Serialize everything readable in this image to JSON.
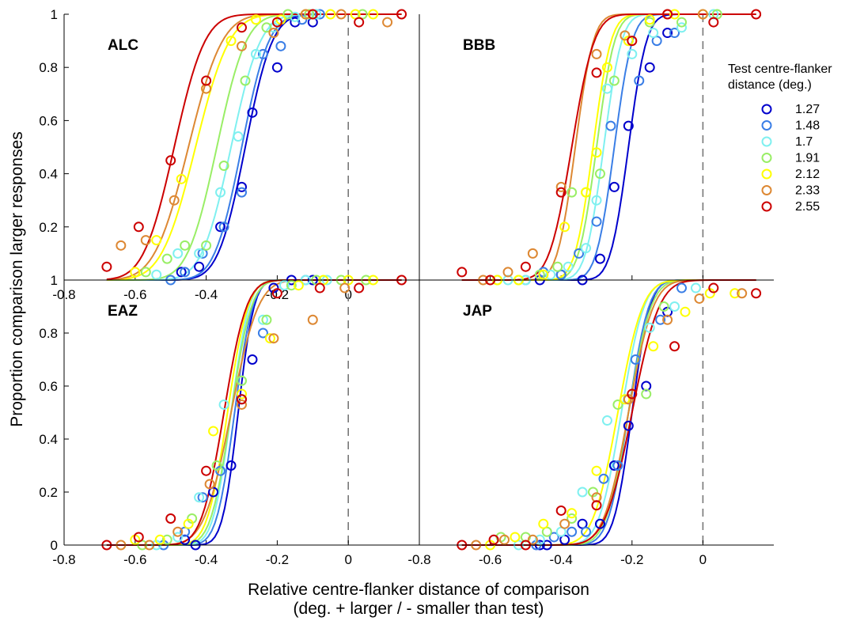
{
  "figure": {
    "ylabel": "Proportion comparison larger responses",
    "xlabel_line1": "Relative centre-flanker distance of comparison",
    "xlabel_line2": "(deg. + larger / - smaller than test)"
  },
  "legend": {
    "title_line1": "Test centre-flanker",
    "title_line2": "distance (deg.)",
    "placement": "right"
  },
  "chart_data": [
    {
      "type": "scatter",
      "title": "ALC",
      "xlim": [
        -0.8,
        0.2
      ],
      "ylim": [
        0,
        1
      ],
      "xticks": [
        "-0.8",
        "-0.6",
        "-0.4",
        "-0.2",
        "0"
      ],
      "yticks": [
        "0.2",
        "0.4",
        "0.6",
        "0.8",
        "1"
      ],
      "reference_line_x": 0,
      "series": [
        {
          "name": "1.27",
          "color": "#0000cc",
          "fit": {
            "mu": -0.29,
            "s": 0.06
          },
          "x": [
            -0.47,
            -0.42,
            -0.36,
            -0.3,
            -0.27,
            -0.2,
            -0.15,
            -0.1
          ],
          "y": [
            0.03,
            0.05,
            0.2,
            0.35,
            0.63,
            0.8,
            0.97,
            0.97
          ]
        },
        {
          "name": "1.48",
          "color": "#3a7ee6",
          "fit": {
            "mu": -0.3,
            "s": 0.06
          },
          "x": [
            -0.5,
            -0.46,
            -0.41,
            -0.35,
            -0.3,
            -0.24,
            -0.19,
            -0.13,
            -0.08
          ],
          "y": [
            0.0,
            0.03,
            0.1,
            0.2,
            0.33,
            0.85,
            0.88,
            0.98,
            1.0
          ]
        },
        {
          "name": "1.7",
          "color": "#7ff0f0",
          "fit": {
            "mu": -0.33,
            "s": 0.065
          },
          "x": [
            -0.54,
            -0.48,
            -0.42,
            -0.36,
            -0.31,
            -0.26,
            -0.21,
            -0.15,
            -0.09
          ],
          "y": [
            0.02,
            0.1,
            0.1,
            0.33,
            0.54,
            0.85,
            0.95,
            0.99,
            1.0
          ]
        },
        {
          "name": "1.91",
          "color": "#99ee66",
          "fit": {
            "mu": -0.37,
            "s": 0.065
          },
          "x": [
            -0.57,
            -0.51,
            -0.46,
            -0.4,
            -0.35,
            -0.29,
            -0.23,
            -0.17,
            -0.11,
            0.04
          ],
          "y": [
            0.03,
            0.08,
            0.13,
            0.13,
            0.43,
            0.75,
            0.95,
            1.0,
            1.0,
            1.0
          ]
        },
        {
          "name": "2.12",
          "color": "#ffff00",
          "fit": {
            "mu": -0.43,
            "s": 0.075
          },
          "x": [
            -0.6,
            -0.54,
            -0.47,
            -0.4,
            -0.33,
            -0.26,
            -0.19,
            -0.12,
            -0.05,
            0.02,
            0.07
          ],
          "y": [
            0.03,
            0.15,
            0.38,
            0.72,
            0.9,
            0.98,
            0.98,
            1.0,
            1.0,
            1.0,
            1.0
          ]
        },
        {
          "name": "2.33",
          "color": "#dd8833",
          "fit": {
            "mu": -0.45,
            "s": 0.075
          },
          "x": [
            -0.64,
            -0.57,
            -0.49,
            -0.4,
            -0.3,
            -0.21,
            -0.12,
            -0.02,
            0.11
          ],
          "y": [
            0.13,
            0.15,
            0.3,
            0.72,
            0.88,
            0.93,
            1.0,
            1.0,
            0.97
          ]
        },
        {
          "name": "2.55",
          "color": "#cc0000",
          "fit": {
            "mu": -0.49,
            "s": 0.068
          },
          "x": [
            -0.68,
            -0.59,
            -0.5,
            -0.4,
            -0.3,
            -0.2,
            -0.1,
            0.03,
            0.15
          ],
          "y": [
            0.05,
            0.2,
            0.45,
            0.75,
            0.95,
            0.97,
            1.0,
            0.97,
            1.0
          ]
        }
      ]
    },
    {
      "type": "scatter",
      "title": "BBB",
      "xlim": [
        -0.8,
        0.2
      ],
      "ylim": [
        0,
        1
      ],
      "xticks": [],
      "yticks": [],
      "reference_line_x": 0,
      "series": [
        {
          "name": "1.27",
          "color": "#0000cc",
          "fit": {
            "mu": -0.21,
            "s": 0.04
          },
          "x": [
            -0.46,
            -0.4,
            -0.34,
            -0.29,
            -0.25,
            -0.21,
            -0.15,
            -0.1
          ],
          "y": [
            0.0,
            0.02,
            0.0,
            0.08,
            0.35,
            0.58,
            0.8,
            0.93
          ]
        },
        {
          "name": "1.48",
          "color": "#3a7ee6",
          "fit": {
            "mu": -0.25,
            "s": 0.04
          },
          "x": [
            -0.5,
            -0.45,
            -0.4,
            -0.35,
            -0.3,
            -0.26,
            -0.18,
            -0.13,
            -0.08
          ],
          "y": [
            0.0,
            0.03,
            0.02,
            0.1,
            0.22,
            0.58,
            0.75,
            0.9,
            0.93
          ]
        },
        {
          "name": "1.7",
          "color": "#7ff0f0",
          "fit": {
            "mu": -0.28,
            "s": 0.04
          },
          "x": [
            -0.55,
            -0.5,
            -0.43,
            -0.38,
            -0.33,
            -0.3,
            -0.27,
            -0.2,
            -0.14,
            -0.06,
            0.03
          ],
          "y": [
            0.0,
            0.0,
            0.02,
            0.05,
            0.12,
            0.3,
            0.72,
            0.85,
            0.93,
            0.95,
            1.0
          ]
        },
        {
          "name": "1.91",
          "color": "#99ee66",
          "fit": {
            "mu": -0.3,
            "s": 0.04
          },
          "x": [
            -0.58,
            -0.52,
            -0.46,
            -0.41,
            -0.37,
            -0.33,
            -0.29,
            -0.25,
            -0.21,
            -0.15,
            -0.06,
            0.04
          ],
          "y": [
            0.0,
            0.0,
            0.02,
            0.05,
            0.33,
            0.33,
            0.4,
            0.75,
            0.9,
            0.97,
            0.97,
            1.0
          ]
        },
        {
          "name": "2.12",
          "color": "#ffff00",
          "fit": {
            "mu": -0.31,
            "s": 0.04
          },
          "x": [
            -0.58,
            -0.52,
            -0.45,
            -0.39,
            -0.33,
            -0.3,
            -0.27,
            -0.21,
            -0.15,
            -0.08,
            0.0
          ],
          "y": [
            0.0,
            0.0,
            0.02,
            0.2,
            0.33,
            0.48,
            0.8,
            0.9,
            0.98,
            1.0,
            1.0
          ]
        },
        {
          "name": "2.33",
          "color": "#dd8833",
          "fit": {
            "mu": -0.36,
            "s": 0.04
          },
          "x": [
            -0.62,
            -0.55,
            -0.48,
            -0.4,
            -0.3,
            -0.22,
            -0.1,
            0.0
          ],
          "y": [
            0.0,
            0.03,
            0.1,
            0.35,
            0.85,
            0.92,
            1.0,
            1.0
          ]
        },
        {
          "name": "2.55",
          "color": "#cc0000",
          "fit": {
            "mu": -0.37,
            "s": 0.05
          },
          "x": [
            -0.68,
            -0.6,
            -0.5,
            -0.4,
            -0.3,
            -0.2,
            -0.1,
            0.03,
            0.15
          ],
          "y": [
            0.03,
            0.0,
            0.05,
            0.33,
            0.78,
            0.9,
            1.0,
            0.97,
            1.0
          ]
        }
      ]
    },
    {
      "type": "scatter",
      "title": "EAZ",
      "xlim": [
        -0.8,
        0.2
      ],
      "ylim": [
        0,
        1
      ],
      "xticks": [
        "-0.8",
        "-0.6",
        "-0.4",
        "-0.2",
        "0"
      ],
      "yticks": [
        "0",
        "0.2",
        "0.4",
        "0.6",
        "0.8",
        "1"
      ],
      "reference_line_x": 0,
      "series": [
        {
          "name": "1.27",
          "color": "#0000cc",
          "fit": {
            "mu": -0.31,
            "s": 0.035
          },
          "x": [
            -0.46,
            -0.43,
            -0.38,
            -0.33,
            -0.27,
            -0.21,
            -0.16,
            -0.1
          ],
          "y": [
            0.02,
            0.0,
            0.2,
            0.3,
            0.7,
            0.97,
            1.0,
            1.0
          ]
        },
        {
          "name": "1.48",
          "color": "#3a7ee6",
          "fit": {
            "mu": -0.32,
            "s": 0.04
          },
          "x": [
            -0.52,
            -0.46,
            -0.41,
            -0.36,
            -0.3,
            -0.24,
            -0.18,
            -0.12
          ],
          "y": [
            0.0,
            0.05,
            0.18,
            0.28,
            0.55,
            0.8,
            0.98,
            1.0
          ]
        },
        {
          "name": "1.7",
          "color": "#7ff0f0",
          "fit": {
            "mu": -0.33,
            "s": 0.04
          },
          "x": [
            -0.54,
            -0.48,
            -0.42,
            -0.35,
            -0.3,
            -0.24,
            -0.18,
            -0.12,
            -0.06
          ],
          "y": [
            0.0,
            0.03,
            0.18,
            0.53,
            0.62,
            0.85,
            0.98,
            1.0,
            1.0
          ]
        },
        {
          "name": "1.91",
          "color": "#99ee66",
          "fit": {
            "mu": -0.33,
            "s": 0.045
          },
          "x": [
            -0.58,
            -0.51,
            -0.44,
            -0.37,
            -0.3,
            -0.23,
            -0.16,
            -0.09,
            -0.02,
            0.05
          ],
          "y": [
            0.0,
            0.02,
            0.1,
            0.3,
            0.62,
            0.85,
            0.98,
            1.0,
            1.0,
            1.0
          ]
        },
        {
          "name": "2.12",
          "color": "#ffff00",
          "fit": {
            "mu": -0.34,
            "s": 0.045
          },
          "x": [
            -0.6,
            -0.53,
            -0.45,
            -0.38,
            -0.3,
            -0.22,
            -0.14,
            -0.07,
            0.0,
            0.07
          ],
          "y": [
            0.02,
            0.02,
            0.08,
            0.43,
            0.57,
            0.78,
            0.98,
            1.0,
            1.0,
            1.0
          ]
        },
        {
          "name": "2.33",
          "color": "#dd8833",
          "fit": {
            "mu": -0.33,
            "s": 0.06
          },
          "x": [
            -0.64,
            -0.56,
            -0.48,
            -0.39,
            -0.3,
            -0.21,
            -0.1,
            -0.01
          ],
          "y": [
            0.0,
            0.0,
            0.05,
            0.23,
            0.53,
            0.78,
            0.85,
            0.97
          ]
        },
        {
          "name": "2.55",
          "color": "#cc0000",
          "fit": {
            "mu": -0.35,
            "s": 0.05
          },
          "x": [
            -0.68,
            -0.59,
            -0.5,
            -0.4,
            -0.3,
            -0.2,
            -0.08,
            0.03,
            0.15
          ],
          "y": [
            0.0,
            0.03,
            0.1,
            0.28,
            0.55,
            0.95,
            0.97,
            0.97,
            1.0
          ]
        }
      ]
    },
    {
      "type": "scatter",
      "title": "JAP",
      "xlim": [
        -0.8,
        0.2
      ],
      "ylim": [
        0,
        1
      ],
      "xticks": [
        "-0.8",
        "-0.6",
        "-0.4",
        "-0.2",
        "0"
      ],
      "yticks": [],
      "reference_line_x": 0,
      "series": [
        {
          "name": "1.27",
          "color": "#0000cc",
          "fit": {
            "mu": -0.2,
            "s": 0.04
          },
          "x": [
            -0.46,
            -0.44,
            -0.39,
            -0.34,
            -0.29,
            -0.25,
            -0.21,
            -0.16,
            -0.1
          ],
          "y": [
            0.0,
            0.0,
            0.02,
            0.08,
            0.08,
            0.3,
            0.45,
            0.6,
            0.88
          ]
        },
        {
          "name": "1.48",
          "color": "#3a7ee6",
          "fit": {
            "mu": -0.21,
            "s": 0.045
          },
          "x": [
            -0.47,
            -0.42,
            -0.37,
            -0.33,
            -0.28,
            -0.24,
            -0.19,
            -0.12,
            -0.06
          ],
          "y": [
            0.0,
            0.03,
            0.05,
            0.05,
            0.25,
            0.3,
            0.7,
            0.85,
            0.97
          ]
        },
        {
          "name": "1.7",
          "color": "#7ff0f0",
          "fit": {
            "mu": -0.23,
            "s": 0.05
          },
          "x": [
            -0.52,
            -0.46,
            -0.4,
            -0.34,
            -0.27,
            -0.21,
            -0.15,
            -0.08,
            -0.02
          ],
          "y": [
            0.0,
            0.02,
            0.05,
            0.2,
            0.47,
            0.55,
            0.82,
            0.9,
            0.97
          ]
        },
        {
          "name": "1.91",
          "color": "#99ee66",
          "fit": {
            "mu": -0.21,
            "s": 0.05
          },
          "x": [
            -0.57,
            -0.5,
            -0.44,
            -0.37,
            -0.31,
            -0.24,
            -0.16,
            -0.11
          ],
          "y": [
            0.03,
            0.03,
            0.05,
            0.1,
            0.2,
            0.53,
            0.57,
            0.9
          ]
        },
        {
          "name": "2.12",
          "color": "#ffff00",
          "fit": {
            "mu": -0.24,
            "s": 0.055
          },
          "x": [
            -0.6,
            -0.53,
            -0.45,
            -0.37,
            -0.3,
            -0.22,
            -0.14,
            -0.05,
            0.02,
            0.09
          ],
          "y": [
            0.0,
            0.03,
            0.08,
            0.12,
            0.28,
            0.55,
            0.75,
            0.88,
            0.95,
            0.95
          ]
        },
        {
          "name": "2.33",
          "color": "#dd8833",
          "fit": {
            "mu": -0.21,
            "s": 0.055
          },
          "x": [
            -0.64,
            -0.56,
            -0.48,
            -0.39,
            -0.3,
            -0.21,
            -0.1,
            -0.01,
            0.11
          ],
          "y": [
            0.0,
            0.02,
            0.02,
            0.08,
            0.18,
            0.55,
            0.85,
            0.93,
            0.95
          ]
        },
        {
          "name": "2.55",
          "color": "#cc0000",
          "fit": {
            "mu": -0.2,
            "s": 0.06
          },
          "x": [
            -0.68,
            -0.59,
            -0.5,
            -0.4,
            -0.3,
            -0.2,
            -0.08,
            0.03,
            0.15
          ],
          "y": [
            0.0,
            0.02,
            0.0,
            0.13,
            0.15,
            0.57,
            0.75,
            0.97,
            0.95
          ]
        }
      ]
    }
  ]
}
